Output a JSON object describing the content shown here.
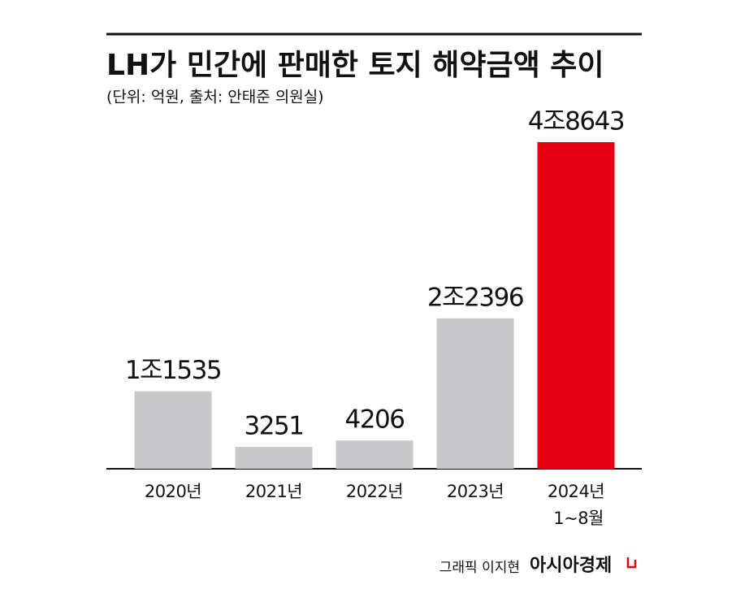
{
  "chart_data": {
    "type": "bar",
    "title": "LH가 민간에 판매한 토지 해약금액 추이",
    "subtitle": "(단위: 억원, 출처: 안태준 의원실)",
    "categories": [
      "2020년",
      "2021년",
      "2022년",
      "2023년",
      "2024년 1~8월"
    ],
    "values": [
      11535,
      3251,
      4206,
      22396,
      48643
    ],
    "value_labels": [
      "1조1535",
      "3251",
      "4206",
      "2조2396",
      "4조8643"
    ],
    "colors": [
      "#c8c8ca",
      "#c8c8ca",
      "#c8c8ca",
      "#c8c8ca",
      "#e60012"
    ],
    "credit": "그래픽 이지현",
    "source_brand": "아시아경제"
  }
}
